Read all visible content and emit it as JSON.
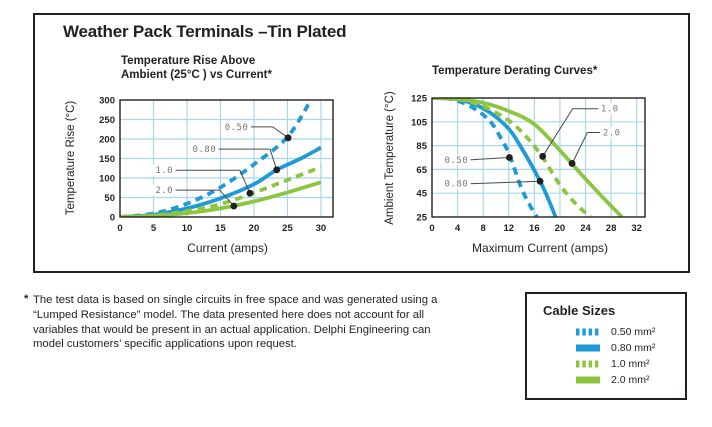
{
  "page": {
    "title": "Weather Pack Terminals –Tin Plated"
  },
  "colors": {
    "blue": "#1f9ad6",
    "green": "#8cc63f",
    "grid": "#a9d6ee",
    "ink": "#231f20",
    "callout": "#4a4a4c",
    "callout_text": "#77787b"
  },
  "chart_data": [
    {
      "type": "line",
      "title": "Temperature Rise Above Ambient (25°C ) vs Current*",
      "xlabel": "Current (amps)",
      "ylabel": "Temperature Rise (°C)",
      "xlim": [
        0,
        31.8
      ],
      "ylim": [
        0,
        300
      ],
      "xticks": [
        0,
        5,
        10,
        15,
        20,
        25,
        30
      ],
      "yticks": [
        0,
        50,
        100,
        150,
        200,
        250,
        300
      ],
      "grid": true,
      "series": [
        {
          "name": "0.50",
          "cable": "0.50 mm²",
          "color": "blue",
          "dash": true,
          "points": [
            [
              0,
              0
            ],
            [
              5,
              9
            ],
            [
              10,
              34
            ],
            [
              15,
              76
            ],
            [
              20,
              135
            ],
            [
              25,
              205
            ],
            [
              28.5,
              300
            ]
          ]
        },
        {
          "name": "0.80",
          "cable": "0.80 mm²",
          "color": "blue",
          "dash": false,
          "points": [
            [
              0,
              0
            ],
            [
              5,
              6
            ],
            [
              10,
              22
            ],
            [
              15,
              48
            ],
            [
              20,
              84
            ],
            [
              23.4,
              121
            ],
            [
              27,
              150
            ],
            [
              30,
              178
            ]
          ]
        },
        {
          "name": "1.0",
          "cable": "1.0 mm²",
          "color": "green",
          "dash": true,
          "points": [
            [
              0,
              0
            ],
            [
              5,
              4
            ],
            [
              10,
              15
            ],
            [
              15,
              33
            ],
            [
              20,
              62
            ],
            [
              25,
              95
            ],
            [
              30,
              128
            ]
          ]
        },
        {
          "name": "2.0",
          "cable": "2.0 mm²",
          "color": "green",
          "dash": false,
          "points": [
            [
              0,
              0
            ],
            [
              5,
              3
            ],
            [
              10,
              10
            ],
            [
              15,
              22
            ],
            [
              20,
              40
            ],
            [
              25,
              63
            ],
            [
              30,
              89
            ]
          ]
        }
      ],
      "callouts": [
        {
          "label": "0.50",
          "label_pos": [
            17.4,
            231
          ],
          "line": [
            [
              19.4,
              231
            ],
            [
              22.8,
              231
            ],
            [
              25.1,
              203
            ]
          ],
          "dot": [
            25.1,
            203
          ]
        },
        {
          "label": "0.80",
          "label_pos": [
            12.6,
            174
          ],
          "line": [
            [
              14.7,
              174
            ],
            [
              22.4,
              174
            ],
            [
              23.4,
              121
            ]
          ],
          "dot": [
            23.4,
            121
          ]
        },
        {
          "label": "1.0",
          "label_pos": [
            6.6,
            120
          ],
          "line": [
            [
              8.2,
              120
            ],
            [
              17.9,
              120
            ],
            [
              19.4,
              61
            ]
          ],
          "dot": [
            19.4,
            61
          ]
        },
        {
          "label": "2.0",
          "label_pos": [
            6.6,
            69
          ],
          "line": [
            [
              8.2,
              69
            ],
            [
              14.9,
              69
            ],
            [
              17,
              28
            ]
          ],
          "dot": [
            17,
            28
          ]
        }
      ]
    },
    {
      "type": "line",
      "title": "Temperature Derating Curves*",
      "xlabel": "Maximum Current (amps)",
      "ylabel": "Ambient Temperature (°C)",
      "xlim": [
        0,
        33.3
      ],
      "ylim": [
        25,
        125
      ],
      "xticks": [
        0,
        4,
        8,
        12,
        16,
        20,
        24,
        28,
        32
      ],
      "yticks": [
        25,
        45,
        65,
        85,
        105,
        125
      ],
      "grid": true,
      "series": [
        {
          "name": "0.50",
          "cable": "0.50 mm²",
          "color": "blue",
          "dash": true,
          "points": [
            [
              0,
              125
            ],
            [
              3,
              124
            ],
            [
              6,
              118
            ],
            [
              9,
              106
            ],
            [
              11,
              89
            ],
            [
              12.2,
              76
            ],
            [
              14,
              49
            ],
            [
              15.5,
              33
            ],
            [
              16.4,
              25
            ]
          ]
        },
        {
          "name": "0.80",
          "cable": "0.80 mm²",
          "color": "blue",
          "dash": false,
          "points": [
            [
              0,
              125
            ],
            [
              3,
              124.5
            ],
            [
              6,
              121
            ],
            [
              9,
              113
            ],
            [
              12,
              99
            ],
            [
              14,
              83
            ],
            [
              16.9,
              55
            ],
            [
              18.5,
              36
            ],
            [
              19.3,
              25
            ]
          ]
        },
        {
          "name": "1.0",
          "cable": "1.0 mm²",
          "color": "green",
          "dash": true,
          "points": [
            [
              0,
              125
            ],
            [
              4,
              124
            ],
            [
              8,
              118
            ],
            [
              12,
              106
            ],
            [
              15,
              91
            ],
            [
              17.3,
              75
            ],
            [
              20,
              52
            ],
            [
              22.5,
              36
            ],
            [
              24.8,
              25
            ]
          ]
        },
        {
          "name": "2.0",
          "cable": "2.0 mm²",
          "color": "green",
          "dash": false,
          "points": [
            [
              0,
              125
            ],
            [
              4,
              124
            ],
            [
              8,
              121
            ],
            [
              12,
              114
            ],
            [
              16,
              103
            ],
            [
              20,
              81
            ],
            [
              24,
              57
            ],
            [
              27.5,
              37
            ],
            [
              29.7,
              25
            ]
          ]
        }
      ],
      "callouts": [
        {
          "label": "0.50",
          "label_pos": [
            3.8,
            73
          ],
          "line": [
            [
              5.8,
              73
            ],
            [
              12.1,
              75
            ]
          ],
          "dot": [
            12.1,
            75
          ]
        },
        {
          "label": "0.80",
          "label_pos": [
            3.8,
            53
          ],
          "line": [
            [
              5.8,
              53
            ],
            [
              16.9,
              55
            ]
          ],
          "dot": [
            16.9,
            55
          ]
        },
        {
          "label": "1.0",
          "label_pos": [
            27.8,
            116
          ],
          "line": [
            [
              26,
              116
            ],
            [
              22,
              116
            ],
            [
              17.3,
              76
            ]
          ],
          "dot": [
            17.3,
            76
          ]
        },
        {
          "label": "2.0",
          "label_pos": [
            28.1,
            96
          ],
          "line": [
            [
              26.3,
              96
            ],
            [
              24.3,
              96
            ],
            [
              21.9,
              70
            ]
          ],
          "dot": [
            21.9,
            70
          ]
        }
      ]
    }
  ],
  "footnote": {
    "symbol": "*",
    "lines": [
      "The test data is based on single circuits in free space and was generated using a",
      "“Lumped Resistance” model. The data presented here does not account for all",
      "variables that would be present in an actual application. Delphi Engineering can",
      "model customers’ specific applications upon request."
    ]
  },
  "legend": {
    "title": "Cable Sizes",
    "items": [
      {
        "label": "0.50 mm²",
        "color": "blue",
        "dash": true
      },
      {
        "label": "0.80 mm²",
        "color": "blue",
        "dash": false
      },
      {
        "label": "1.0 mm²",
        "color": "green",
        "dash": true
      },
      {
        "label": "2.0 mm²",
        "color": "green",
        "dash": false
      }
    ]
  }
}
